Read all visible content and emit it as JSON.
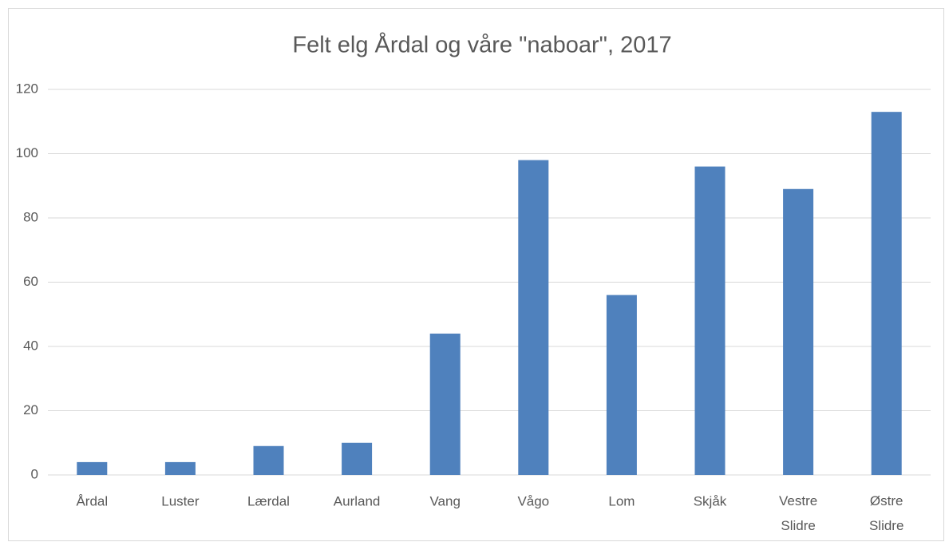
{
  "chart_data": {
    "type": "bar",
    "title": "Felt elg Årdal og våre \"naboar\", 2017",
    "categories": [
      "Årdal",
      "Luster",
      "Lærdal",
      "Aurland",
      "Vang",
      "Vågo",
      "Lom",
      "Skjåk",
      "Vestre Slidre",
      "Østre Slidre"
    ],
    "values": [
      4,
      4,
      9,
      10,
      44,
      98,
      56,
      96,
      89,
      113
    ],
    "color": "#4f81bd",
    "ylim": [
      0,
      120
    ],
    "yticks": [
      0,
      20,
      40,
      60,
      80,
      100,
      120
    ],
    "grid": true
  }
}
